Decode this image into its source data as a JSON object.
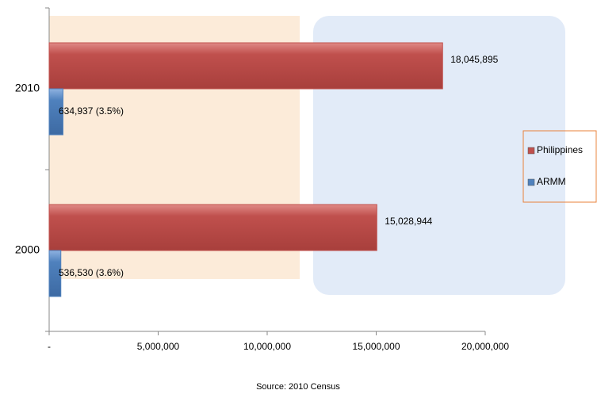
{
  "chart_data": {
    "type": "hbar",
    "categories": [
      "2000",
      "2010"
    ],
    "series": [
      {
        "name": "Philippines",
        "color": "#c0504d",
        "values": [
          15028944,
          18045895
        ],
        "value_labels": [
          "15,028,944",
          "18,045,895"
        ]
      },
      {
        "name": "ARMM",
        "color": "#4f81bd",
        "values": [
          536530,
          634937
        ],
        "value_labels": [
          "536,530 (3.6%)",
          "634,937 (3.5%)"
        ]
      }
    ],
    "xlim": [
      0,
      20000000
    ],
    "xticks": [
      {
        "value": 0,
        "label": "-"
      },
      {
        "value": 5000000,
        "label": "5,000,000"
      },
      {
        "value": 10000000,
        "label": "10,000,000"
      },
      {
        "value": 15000000,
        "label": "15,000,000"
      },
      {
        "value": 20000000,
        "label": "20,000,000"
      }
    ],
    "legend": "right",
    "source": "Source: 2010 Census"
  }
}
